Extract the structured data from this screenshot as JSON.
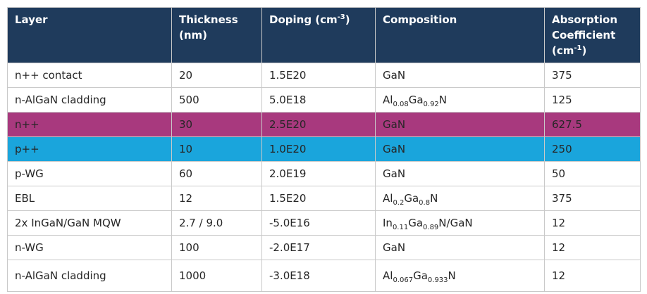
{
  "colors": {
    "header_bg": "#1f3b5c",
    "n_pp_row": "#a8397e",
    "p_pp_row": "#1aa5dc"
  },
  "header": {
    "layer": "Layer",
    "thickness": "Thickness (nm)",
    "doping": "Doping (cm",
    "doping_sup": "-3",
    "doping_close": ")",
    "composition": "Composition",
    "absorption": "Absorption Coefficient (cm",
    "absorption_sup": "-1",
    "absorption_close": ")"
  },
  "rows": [
    {
      "layer": "n++ contact",
      "thickness": "20",
      "doping": "1.5E20",
      "comp": [
        {
          "t": "GaN"
        }
      ],
      "absorption": "375"
    },
    {
      "layer": "n-AlGaN cladding",
      "thickness": "500",
      "doping": "5.0E18",
      "comp": [
        {
          "t": "Al"
        },
        {
          "sub": "0.08"
        },
        {
          "t": "Ga"
        },
        {
          "sub": "0.92"
        },
        {
          "t": "N"
        }
      ],
      "absorption": "125"
    },
    {
      "layer": "n++",
      "thickness": "30",
      "doping": "2.5E20",
      "comp": [
        {
          "t": "GaN"
        }
      ],
      "absorption": "627.5",
      "highlight": "#a8397e"
    },
    {
      "layer": "p++",
      "thickness": "10",
      "doping": "1.0E20",
      "comp": [
        {
          "t": "GaN"
        }
      ],
      "absorption": "250",
      "highlight": "#1aa5dc"
    },
    {
      "layer": "p-WG",
      "thickness": "60",
      "doping": "2.0E19",
      "comp": [
        {
          "t": "GaN"
        }
      ],
      "absorption": "50"
    },
    {
      "layer": "EBL",
      "thickness": "12",
      "doping": "1.5E20",
      "comp": [
        {
          "t": "Al"
        },
        {
          "sub": "0.2"
        },
        {
          "t": "Ga"
        },
        {
          "sub": "0.8"
        },
        {
          "t": "N"
        }
      ],
      "absorption": "375"
    },
    {
      "layer": "2x InGaN/GaN MQW",
      "thickness": "2.7 / 9.0",
      "doping": "-5.0E16",
      "comp": [
        {
          "t": "In"
        },
        {
          "sub": "0.11"
        },
        {
          "t": "Ga"
        },
        {
          "sub": "0.89"
        },
        {
          "t": "N/GaN"
        }
      ],
      "absorption": "12"
    },
    {
      "layer": "n-WG",
      "thickness": "100",
      "doping": "-2.0E17",
      "comp": [
        {
          "t": "GaN"
        }
      ],
      "absorption": "12"
    },
    {
      "layer": "n-AlGaN cladding",
      "thickness": "1000",
      "doping": "-3.0E18",
      "comp": [
        {
          "t": "Al"
        },
        {
          "sub": "0.067"
        },
        {
          "t": "Ga"
        },
        {
          "sub": "0.933"
        },
        {
          "t": "N"
        }
      ],
      "absorption": "12"
    }
  ]
}
